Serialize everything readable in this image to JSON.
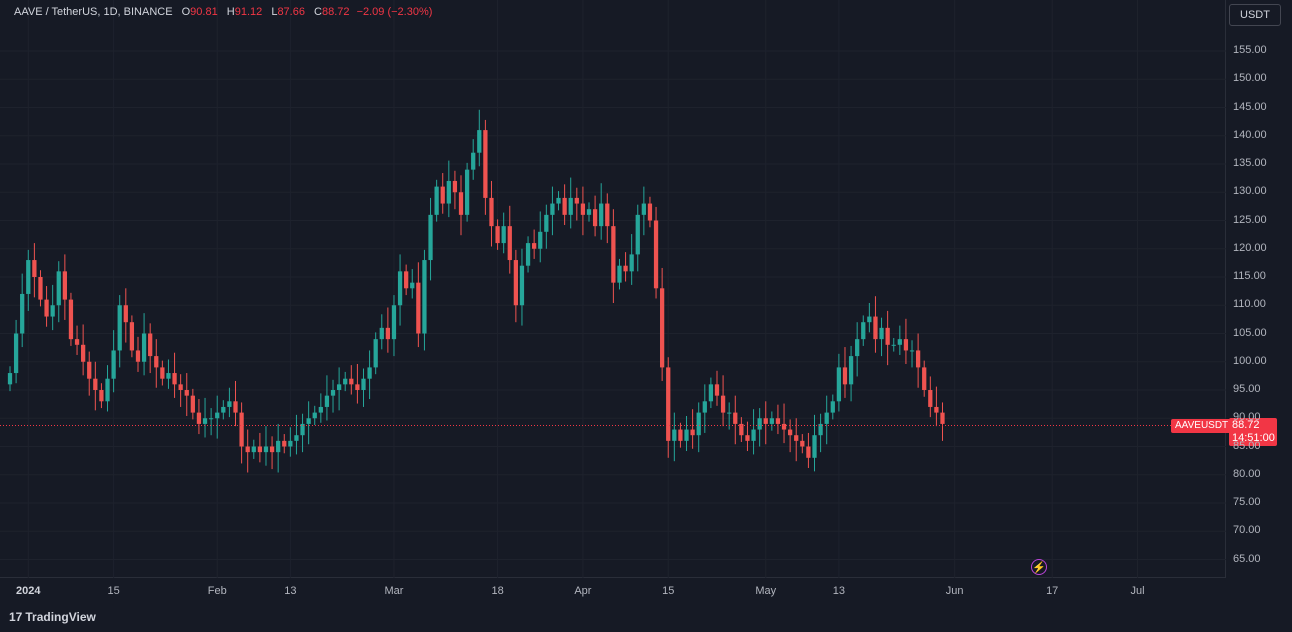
{
  "legend": {
    "symbol": "AAVE / TetherUS, 1D, BINANCE",
    "o_key": "O",
    "o": "90.81",
    "h_key": "H",
    "h": "91.12",
    "l_key": "L",
    "l": "87.66",
    "c_key": "C",
    "c": "88.72",
    "change": "−2.09 (−2.30%)"
  },
  "currency_button": "USDT",
  "symbol_tag": "AAVEUSDT",
  "price_tag": {
    "price": "88.72",
    "countdown": "14:51:00"
  },
  "brand": {
    "logo": "17",
    "name": "TradingView"
  },
  "flash_icon": "⚡",
  "colors": {
    "up": "#26a69a",
    "down": "#ef5350",
    "background": "#161a25",
    "grid": "#1e222d",
    "last_price": "#f23645"
  },
  "chart_data": {
    "type": "candlestick",
    "y_ticks": [
      "155.00",
      "150.00",
      "145.00",
      "140.00",
      "135.00",
      "130.00",
      "125.00",
      "120.00",
      "115.00",
      "110.00",
      "105.00",
      "100.00",
      "95.00",
      "90.00",
      "85.00",
      "80.00",
      "75.00",
      "70.00",
      "65.00"
    ],
    "ylim": [
      60,
      160
    ],
    "x_ticks": [
      {
        "label": "2024",
        "date": "2024-01-01",
        "bold": true
      },
      {
        "label": "15",
        "date": "2024-01-15"
      },
      {
        "label": "Feb",
        "date": "2024-02-01"
      },
      {
        "label": "13",
        "date": "2024-02-13"
      },
      {
        "label": "Mar",
        "date": "2024-03-01"
      },
      {
        "label": "18",
        "date": "2024-03-18"
      },
      {
        "label": "Apr",
        "date": "2024-04-01"
      },
      {
        "label": "15",
        "date": "2024-04-15"
      },
      {
        "label": "May",
        "date": "2024-05-01"
      },
      {
        "label": "13",
        "date": "2024-05-13"
      },
      {
        "label": "Jun",
        "date": "2024-06-01"
      },
      {
        "label": "17",
        "date": "2024-06-17"
      },
      {
        "label": "Jul",
        "date": "2024-07-01"
      }
    ],
    "xlim": [
      "2023-12-29",
      "2024-07-06"
    ],
    "start_date": "2023-12-29",
    "last_price": 88.72,
    "closes": [
      98,
      105,
      112,
      118,
      115,
      111,
      108,
      110,
      116,
      111,
      104,
      103,
      100,
      97,
      95,
      93,
      97,
      102,
      110,
      107,
      102,
      100,
      105,
      101,
      99,
      97,
      98,
      96,
      95,
      94,
      91,
      89,
      90,
      90,
      91,
      92,
      93,
      91,
      85,
      84,
      85,
      84,
      85,
      84,
      86,
      85,
      86,
      87,
      89,
      90,
      91,
      92,
      94,
      95,
      96,
      97,
      96,
      95,
      97,
      99,
      104,
      106,
      104,
      110,
      116,
      113,
      114,
      105,
      118,
      126,
      131,
      128,
      132,
      130,
      126,
      134,
      137,
      141,
      129,
      124,
      121,
      124,
      118,
      110,
      117,
      121,
      120,
      123,
      126,
      128,
      129,
      126,
      129,
      128,
      126,
      127,
      124,
      128,
      124,
      114,
      117,
      116,
      119,
      126,
      128,
      125,
      113,
      99,
      86,
      88,
      86,
      88,
      87,
      91,
      93,
      96,
      94,
      91,
      91,
      89,
      87,
      86,
      88,
      90,
      89,
      90,
      89,
      88,
      87,
      86,
      85,
      83,
      87,
      89,
      91,
      93,
      99,
      96,
      101,
      104,
      107,
      108,
      104,
      106,
      103,
      103,
      104,
      102,
      102,
      99,
      95,
      92,
      91,
      89
    ]
  }
}
